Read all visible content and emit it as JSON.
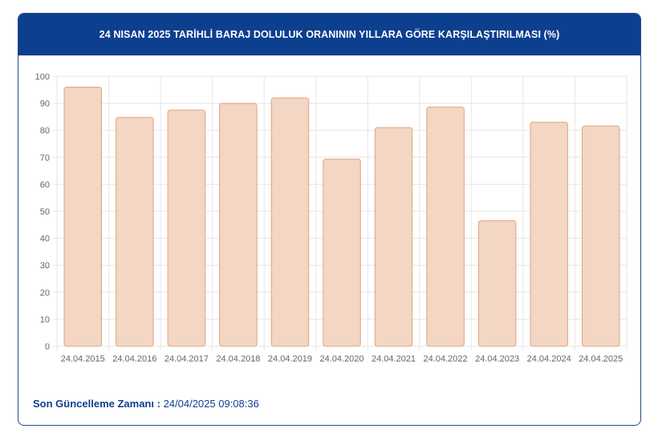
{
  "header": {
    "title": "24 NISAN 2025 TARİHLİ BARAJ DOLULUK ORANININ YILLARA GÖRE KARŞILAŞTIRILMASI (%)"
  },
  "footer": {
    "label": "Son Güncelleme Zamanı",
    "separator": " : ",
    "value": "24/04/2025 09:08:36"
  },
  "colors": {
    "header_bg": "#0d3f8f",
    "bar_fill": "#f3d6c4",
    "bar_stroke": "#e3a37e",
    "grid": "#e6e6e6"
  },
  "chart_data": {
    "type": "bar",
    "title": "24 NISAN 2025 TARİHLİ BARAJ DOLULUK ORANININ YILLARA GÖRE KARŞILAŞTIRILMASI (%)",
    "xlabel": "",
    "ylabel": "",
    "categories": [
      "24.04.2015",
      "24.04.2016",
      "24.04.2017",
      "24.04.2018",
      "24.04.2019",
      "24.04.2020",
      "24.04.2021",
      "24.04.2022",
      "24.04.2023",
      "24.04.2024",
      "24.04.2025"
    ],
    "values": [
      96,
      84.8,
      87.5,
      89.9,
      92,
      69.3,
      81,
      88.6,
      46.5,
      83,
      81.6
    ],
    "ylim": [
      0,
      100
    ],
    "yticks": [
      0,
      10,
      20,
      30,
      40,
      50,
      60,
      70,
      80,
      90,
      100
    ],
    "grid": true,
    "legend": "none"
  }
}
